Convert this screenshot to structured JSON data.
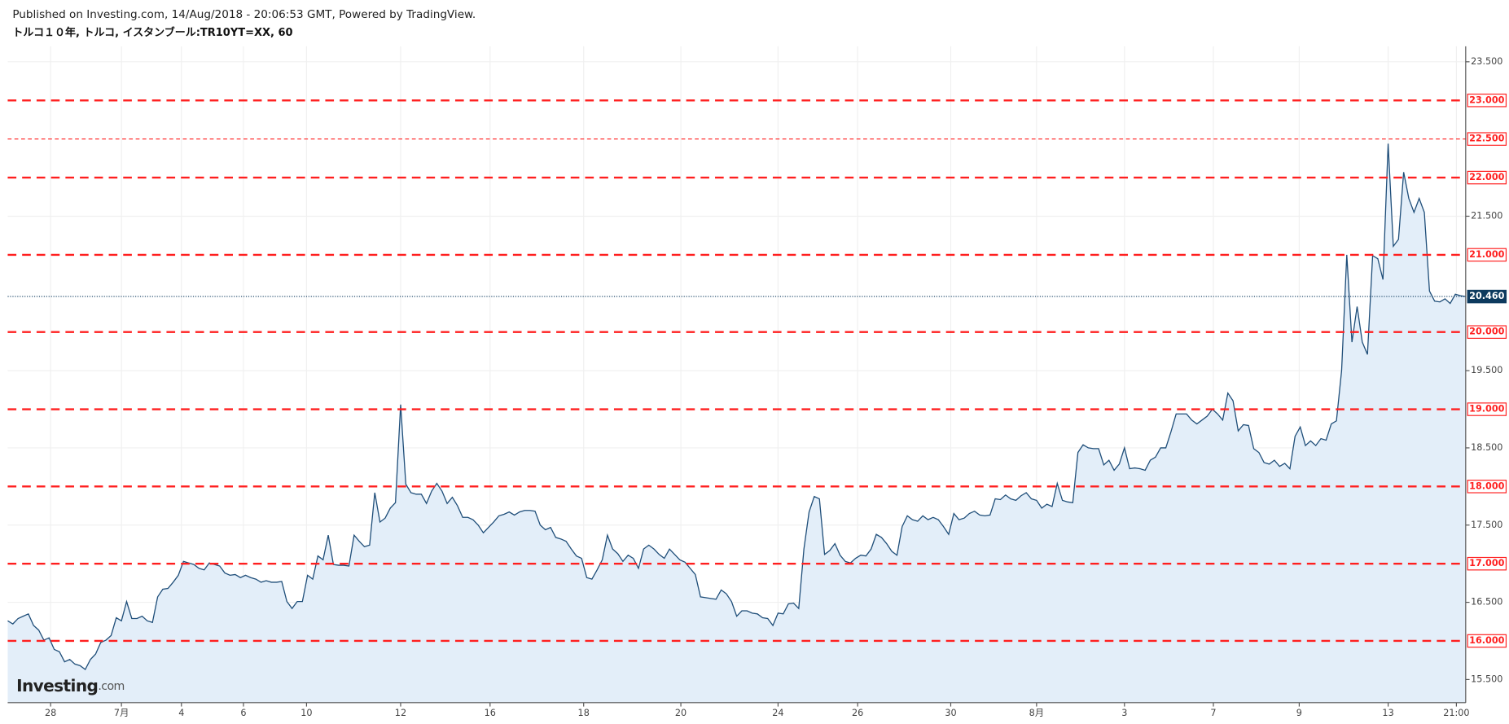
{
  "chart_data": {
    "type": "area",
    "title": "Published on Investing.com, 14/Aug/2018 - 20:06:53 GMT, Powered by TradingView.",
    "subtitle": "トルコ１０年, トルコ, イスタンブール:TR10YT=XX, 60",
    "logo": "Investing",
    "logo_suffix": ".com",
    "color": "#1f4e79",
    "fill": "#e3eef9",
    "values": [
      16.26,
      16.22,
      16.29,
      16.32,
      16.35,
      16.2,
      16.14,
      16.01,
      16.04,
      15.89,
      15.86,
      15.73,
      15.76,
      15.7,
      15.68,
      15.63,
      15.76,
      15.83,
      15.98,
      16.01,
      16.07,
      16.3,
      16.26,
      16.51,
      16.29,
      16.29,
      16.32,
      16.26,
      16.24,
      16.57,
      16.67,
      16.68,
      16.76,
      16.85,
      17.03,
      17.01,
      16.99,
      16.94,
      16.92,
      17.01,
      16.99,
      16.97,
      16.88,
      16.85,
      16.86,
      16.82,
      16.85,
      16.82,
      16.8,
      16.76,
      16.78,
      16.76,
      16.76,
      16.77,
      16.51,
      16.42,
      16.51,
      16.51,
      16.85,
      16.8,
      17.1,
      17.05,
      17.37,
      16.99,
      16.98,
      16.98,
      16.97,
      17.37,
      17.29,
      17.22,
      17.24,
      17.92,
      17.54,
      17.59,
      17.72,
      17.79,
      19.06,
      18.03,
      17.92,
      17.9,
      17.9,
      17.78,
      17.94,
      18.04,
      17.94,
      17.78,
      17.86,
      17.75,
      17.6,
      17.6,
      17.57,
      17.5,
      17.4,
      17.47,
      17.54,
      17.62,
      17.64,
      17.67,
      17.63,
      17.67,
      17.69,
      17.69,
      17.68,
      17.5,
      17.44,
      17.47,
      17.34,
      17.32,
      17.29,
      17.19,
      17.1,
      17.07,
      16.82,
      16.8,
      16.92,
      17.05,
      17.37,
      17.19,
      17.13,
      17.03,
      17.11,
      17.07,
      16.94,
      17.19,
      17.24,
      17.19,
      17.12,
      17.07,
      17.19,
      17.12,
      17.05,
      17.02,
      16.94,
      16.86,
      16.57,
      16.56,
      16.55,
      16.54,
      16.66,
      16.61,
      16.51,
      16.32,
      16.39,
      16.39,
      16.36,
      16.35,
      16.3,
      16.29,
      16.2,
      16.36,
      16.35,
      16.48,
      16.49,
      16.42,
      17.19,
      17.67,
      17.87,
      17.84,
      17.12,
      17.17,
      17.26,
      17.11,
      17.03,
      17.01,
      17.07,
      17.11,
      17.1,
      17.19,
      17.38,
      17.34,
      17.26,
      17.16,
      17.11,
      17.48,
      17.62,
      17.57,
      17.55,
      17.62,
      17.57,
      17.6,
      17.57,
      17.48,
      17.38,
      17.65,
      17.57,
      17.59,
      17.65,
      17.68,
      17.63,
      17.62,
      17.63,
      17.84,
      17.83,
      17.89,
      17.84,
      17.82,
      17.88,
      17.92,
      17.84,
      17.82,
      17.72,
      17.77,
      17.74,
      18.04,
      17.82,
      17.8,
      17.79,
      18.44,
      18.54,
      18.5,
      18.49,
      18.49,
      18.28,
      18.34,
      18.21,
      18.29,
      18.5,
      18.23,
      18.24,
      18.23,
      18.21,
      18.34,
      18.38,
      18.5,
      18.5,
      18.71,
      18.94,
      18.94,
      18.94,
      18.86,
      18.81,
      18.86,
      18.91,
      19.0,
      18.94,
      18.86,
      19.21,
      19.11,
      18.72,
      18.8,
      18.79,
      18.49,
      18.44,
      18.31,
      18.29,
      18.34,
      18.26,
      18.3,
      18.23,
      18.65,
      18.77,
      18.53,
      18.59,
      18.53,
      18.62,
      18.6,
      18.81,
      18.85,
      19.5,
      21.0,
      19.87,
      20.33,
      19.87,
      19.71,
      20.99,
      20.95,
      20.68,
      22.44,
      21.11,
      21.2,
      22.07,
      21.73,
      21.55,
      21.73,
      21.55,
      20.53,
      20.4,
      20.39,
      20.43,
      20.37,
      20.49,
      20.47,
      20.46
    ],
    "xlim": [
      0,
      282
    ],
    "xticks": [
      {
        "value": 8.3,
        "label": "28"
      },
      {
        "value": 22,
        "label": "7月"
      },
      {
        "value": 33.6,
        "label": "4"
      },
      {
        "value": 45.6,
        "label": "6"
      },
      {
        "value": 57.8,
        "label": "10"
      },
      {
        "value": 76,
        "label": "12"
      },
      {
        "value": 93.3,
        "label": "16"
      },
      {
        "value": 111.4,
        "label": "18"
      },
      {
        "value": 130.2,
        "label": "20"
      },
      {
        "value": 149,
        "label": "24"
      },
      {
        "value": 164.4,
        "label": "26"
      },
      {
        "value": 182.4,
        "label": "30"
      },
      {
        "value": 199,
        "label": "8月"
      },
      {
        "value": 216,
        "label": "3"
      },
      {
        "value": 233.2,
        "label": "7"
      },
      {
        "value": 249.8,
        "label": "9"
      },
      {
        "value": 267,
        "label": "13"
      },
      {
        "value": 280.2,
        "label": "21:00"
      }
    ],
    "ylim": [
      15.2,
      23.7
    ],
    "yticks": [
      {
        "value": 15.5,
        "label": "15.500"
      },
      {
        "value": 16.5,
        "label": "16.500"
      },
      {
        "value": 17.5,
        "label": "17.500"
      },
      {
        "value": 18.5,
        "label": "18.500"
      },
      {
        "value": 19.5,
        "label": "19.500"
      },
      {
        "value": 21.5,
        "label": "21.500"
      },
      {
        "value": 23.5,
        "label": "23.500"
      }
    ],
    "grid": true,
    "hlines": [
      {
        "value": 16,
        "label": "16.000",
        "color": "#ff1f1f",
        "style": "dashed"
      },
      {
        "value": 17,
        "label": "17.000",
        "color": "#ff1f1f",
        "style": "dashed"
      },
      {
        "value": 18,
        "label": "18.000",
        "color": "#ff1f1f",
        "style": "dashed"
      },
      {
        "value": 19,
        "label": "19.000",
        "color": "#ff1f1f",
        "style": "dashed"
      },
      {
        "value": 20,
        "label": "20.000",
        "color": "#ff1f1f",
        "style": "dashed"
      },
      {
        "value": 21,
        "label": "21.000",
        "color": "#ff1f1f",
        "style": "dashed"
      },
      {
        "value": 22,
        "label": "22.000",
        "color": "#ff1f1f",
        "style": "dashed"
      },
      {
        "value": 22.5,
        "label": "22.500",
        "color": "#ff1f1f",
        "style": "thin"
      },
      {
        "value": 23,
        "label": "23.000",
        "color": "#ff1f1f",
        "style": "dashed"
      }
    ],
    "last_price": {
      "value": 20.46,
      "label": "20.460",
      "color": "#0d3a5e"
    }
  }
}
